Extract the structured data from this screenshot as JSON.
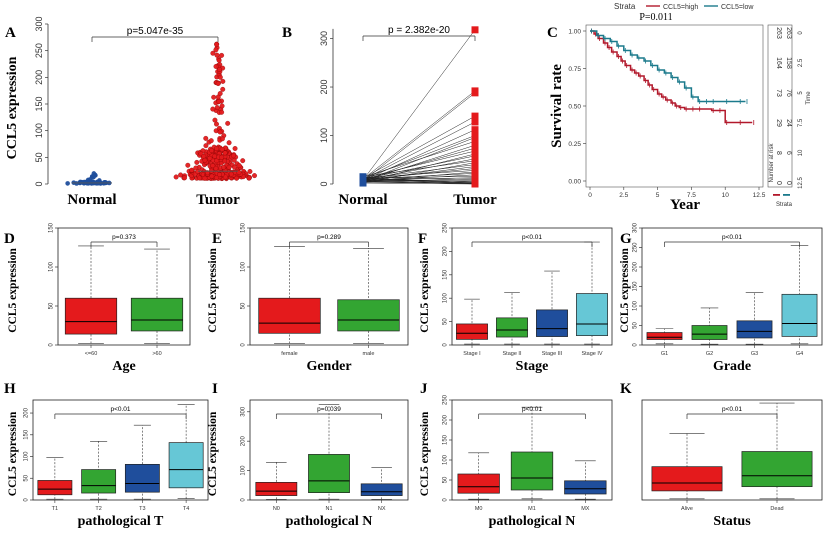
{
  "chart_data": [
    {
      "id": "A",
      "letter": "A",
      "type": "scatter",
      "title": "p=5.047e-35",
      "ylabel": "CCL5 expression",
      "xlabel": "",
      "categories": [
        "Normal",
        "Tumor"
      ],
      "yticks": [
        0,
        50,
        100,
        150,
        200,
        250,
        300
      ],
      "ylim": [
        0,
        300
      ],
      "colors": [
        "#1f4e9c",
        "#e41a1c"
      ],
      "series": [
        {
          "name": "Normal",
          "n": 72,
          "median": 2,
          "q1": 1,
          "q3": 4,
          "max": 20
        },
        {
          "name": "Tumor",
          "n": 400,
          "median": 24,
          "q1": 10,
          "q3": 60,
          "max": 265
        }
      ]
    },
    {
      "id": "B",
      "letter": "B",
      "type": "line",
      "title": "p = 2.382e-20",
      "ylabel": "",
      "xlabel": "",
      "categories": [
        "Normal",
        "Tumor"
      ],
      "yticks": [
        0,
        100,
        200,
        300
      ],
      "ylim": [
        0,
        330
      ],
      "colors": [
        "#1f4e9c",
        "#e41a1c"
      ],
      "pairs": [
        [
          8,
          318
        ],
        [
          10,
          192
        ],
        [
          6,
          188
        ],
        [
          12,
          140
        ],
        [
          9,
          128
        ],
        [
          7,
          112
        ],
        [
          11,
          100
        ],
        [
          5,
          96
        ],
        [
          14,
          88
        ],
        [
          6,
          80
        ],
        [
          9,
          74
        ],
        [
          12,
          68
        ],
        [
          4,
          62
        ],
        [
          10,
          58
        ],
        [
          8,
          52
        ],
        [
          15,
          48
        ],
        [
          3,
          44
        ],
        [
          11,
          40
        ],
        [
          7,
          36
        ],
        [
          9,
          32
        ],
        [
          13,
          28
        ],
        [
          5,
          25
        ],
        [
          10,
          22
        ],
        [
          6,
          19
        ],
        [
          12,
          16
        ],
        [
          8,
          13
        ],
        [
          4,
          11
        ],
        [
          14,
          9
        ],
        [
          7,
          7
        ],
        [
          9,
          5
        ],
        [
          11,
          4
        ],
        [
          6,
          3
        ],
        [
          3,
          2
        ],
        [
          10,
          2
        ],
        [
          13,
          1
        ],
        [
          5,
          1
        ],
        [
          8,
          0
        ],
        [
          2,
          0
        ]
      ]
    },
    {
      "id": "C",
      "letter": "C",
      "type": "line",
      "title": "P=0.011",
      "ylabel": "Survival rate",
      "xlabel": "Year",
      "legend_title": "Strata",
      "xticks": [
        0,
        2.5,
        5,
        7.5,
        10,
        12.5
      ],
      "xtick_labels": [
        "0",
        "2.5",
        "5",
        "7.5",
        "10",
        "12.5"
      ],
      "yticks": [
        0,
        0.25,
        0.5,
        0.75,
        1
      ],
      "ytick_labels": [
        "0.00",
        "0.25",
        "0.50",
        "0.75",
        "1.00"
      ],
      "xlim": [
        0,
        12.5
      ],
      "ylim": [
        0,
        1
      ],
      "series": [
        {
          "name": "CCL5=high",
          "color": "#b2182b",
          "x": [
            0,
            0.3,
            0.6,
            1,
            1.3,
            1.6,
            2,
            2.3,
            2.6,
            3,
            3.3,
            3.6,
            4,
            4.3,
            4.6,
            5,
            5.3,
            5.6,
            6,
            6.3,
            6.6,
            7,
            7.5,
            8,
            9,
            9.5,
            10,
            11,
            12
          ],
          "y": [
            1,
            0.98,
            0.95,
            0.92,
            0.89,
            0.86,
            0.83,
            0.8,
            0.77,
            0.74,
            0.72,
            0.7,
            0.67,
            0.64,
            0.61,
            0.58,
            0.56,
            0.54,
            0.52,
            0.5,
            0.49,
            0.48,
            0.48,
            0.48,
            0.47,
            0.47,
            0.39,
            0.39,
            0.39
          ]
        },
        {
          "name": "CCL5=low",
          "color": "#1b7a8c",
          "x": [
            0,
            0.5,
            1,
            1.5,
            2,
            2.5,
            3,
            3.5,
            4,
            4.5,
            5,
            5.5,
            6,
            6.5,
            7,
            7.5,
            8,
            8.5,
            9,
            10,
            11,
            11.5
          ],
          "y": [
            1,
            0.97,
            0.95,
            0.93,
            0.9,
            0.87,
            0.84,
            0.82,
            0.8,
            0.77,
            0.74,
            0.72,
            0.69,
            0.66,
            0.62,
            0.56,
            0.53,
            0.53,
            0.53,
            0.53,
            0.53,
            0.53
          ]
        }
      ],
      "risk_table": {
        "title": "Number at risk",
        "time_label": "Time",
        "strata_label": "Strata",
        "times": [
          "0",
          "2.5",
          "5",
          "7.5",
          "10",
          "12.5"
        ],
        "rows": [
          {
            "name": "CCL5=high",
            "color": "#b2182b",
            "counts": [
              "263",
              "164",
              "73",
              "29",
              "8",
              "0"
            ]
          },
          {
            "name": "CCL5=low",
            "color": "#1b7a8c",
            "counts": [
              "263",
              "158",
              "76",
              "24",
              "6",
              "0"
            ]
          }
        ]
      }
    },
    {
      "id": "D",
      "letter": "D",
      "type": "box",
      "title": "p=0.373",
      "ylabel": "CCL5 expression",
      "xlabel": "Age",
      "yticks": [
        0,
        50,
        100,
        150
      ],
      "ylim": [
        0,
        150
      ],
      "categories": [
        "<=60",
        ">60"
      ],
      "colors": [
        "#e41a1c",
        "#33a532"
      ],
      "boxes": [
        [
          2,
          14,
          30,
          60,
          127
        ],
        [
          2,
          18,
          32,
          60,
          123
        ]
      ]
    },
    {
      "id": "E",
      "letter": "E",
      "type": "box",
      "title": "p=0.289",
      "ylabel": "CCL5 expression",
      "xlabel": "Gender",
      "yticks": [
        0,
        50,
        100,
        150
      ],
      "ylim": [
        0,
        150
      ],
      "categories": [
        "female",
        "male"
      ],
      "colors": [
        "#e41a1c",
        "#33a532"
      ],
      "boxes": [
        [
          2,
          15,
          28,
          60,
          126
        ],
        [
          2,
          18,
          32,
          58,
          124
        ]
      ]
    },
    {
      "id": "F",
      "letter": "F",
      "type": "box",
      "title": "p<0.01",
      "ylabel": "CCL5 expression",
      "xlabel": "Stage",
      "yticks": [
        0,
        50,
        100,
        150,
        200,
        250
      ],
      "ylim": [
        0,
        250
      ],
      "categories": [
        "Stage I",
        "Stage II",
        "Stage III",
        "Stage IV"
      ],
      "colors": [
        "#e41a1c",
        "#33a532",
        "#1f4e9c",
        "#66c7d6"
      ],
      "boxes": [
        [
          2,
          12,
          25,
          45,
          98
        ],
        [
          2,
          17,
          32,
          58,
          112
        ],
        [
          2,
          18,
          35,
          75,
          158
        ],
        [
          2,
          20,
          45,
          110,
          220
        ]
      ]
    },
    {
      "id": "G",
      "letter": "G",
      "type": "box",
      "title": "p<0.01",
      "ylabel": "CCL5 expression",
      "xlabel": "Grade",
      "yticks": [
        0,
        50,
        100,
        150,
        200,
        250,
        300
      ],
      "ylim": [
        0,
        300
      ],
      "categories": [
        "G1",
        "G2",
        "G3",
        "G4"
      ],
      "colors": [
        "#e41a1c",
        "#33a532",
        "#1f4e9c",
        "#66c7d6"
      ],
      "boxes": [
        [
          3,
          14,
          20,
          32,
          42
        ],
        [
          2,
          14,
          28,
          50,
          95
        ],
        [
          2,
          18,
          35,
          62,
          135
        ],
        [
          3,
          22,
          55,
          130,
          255
        ]
      ]
    },
    {
      "id": "H",
      "letter": "H",
      "type": "box",
      "title": "p<0.01",
      "ylabel": "CCL5 expression",
      "xlabel": "pathological T",
      "yticks": [
        0,
        50,
        100,
        150,
        200
      ],
      "ylim": [
        0,
        230
      ],
      "categories": [
        "T1",
        "T2",
        "T3",
        "T4"
      ],
      "colors": [
        "#e41a1c",
        "#33a532",
        "#1f4e9c",
        "#66c7d6"
      ],
      "boxes": [
        [
          2,
          12,
          25,
          45,
          98
        ],
        [
          2,
          16,
          33,
          70,
          135
        ],
        [
          2,
          18,
          38,
          82,
          172
        ],
        [
          3,
          28,
          70,
          132,
          220
        ]
      ]
    },
    {
      "id": "I",
      "letter": "I",
      "type": "box",
      "title": "p=0.039",
      "ylabel": "CCL5 expression",
      "xlabel": "pathological N",
      "yticks": [
        0,
        100,
        200,
        300
      ],
      "ylim": [
        0,
        340
      ],
      "categories": [
        "N0",
        "N1",
        "NX"
      ],
      "colors": [
        "#e41a1c",
        "#33a532",
        "#1f4e9c"
      ],
      "boxes": [
        [
          2,
          15,
          30,
          60,
          128
        ],
        [
          3,
          25,
          65,
          155,
          325
        ],
        [
          2,
          15,
          28,
          55,
          110
        ]
      ]
    },
    {
      "id": "J",
      "letter": "J",
      "type": "box",
      "title": "p<0.01",
      "ylabel": "CCL5 expression",
      "xlabel": "pathological N",
      "yticks": [
        0,
        50,
        100,
        150,
        200,
        250
      ],
      "ylim": [
        0,
        250
      ],
      "categories": [
        "M0",
        "M1",
        "MX"
      ],
      "colors": [
        "#e41a1c",
        "#33a532",
        "#1f4e9c"
      ],
      "boxes": [
        [
          2,
          17,
          33,
          65,
          118
        ],
        [
          3,
          25,
          55,
          120,
          232
        ],
        [
          2,
          15,
          28,
          48,
          98
        ]
      ]
    },
    {
      "id": "K",
      "letter": "K",
      "type": "box",
      "title": "p<0.01",
      "ylabel": "",
      "xlabel": "Status",
      "yticks": [],
      "ylim": [
        0,
        165
      ],
      "categories": [
        "Alive",
        "Dead"
      ],
      "colors": [
        "#e41a1c",
        "#33a532"
      ],
      "boxes": [
        [
          2,
          15,
          28,
          55,
          110
        ],
        [
          2,
          22,
          40,
          80,
          160
        ]
      ]
    }
  ]
}
